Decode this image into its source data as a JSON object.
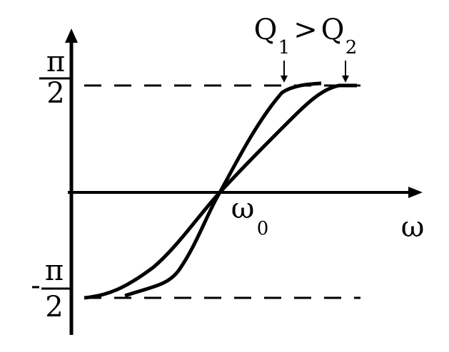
{
  "labels": {
    "top_value": {
      "numerator": "π",
      "denominator": "2"
    },
    "bottom_value": {
      "sign": "-",
      "numerator": "π",
      "denominator": "2"
    },
    "center": {
      "symbol": "ω",
      "subscript": "0"
    },
    "x_axis": "ω",
    "legend": {
      "q1": "Q",
      "q1_sub": "1",
      "relation": ">",
      "q2": "Q",
      "q2_sub": "2"
    }
  }
}
